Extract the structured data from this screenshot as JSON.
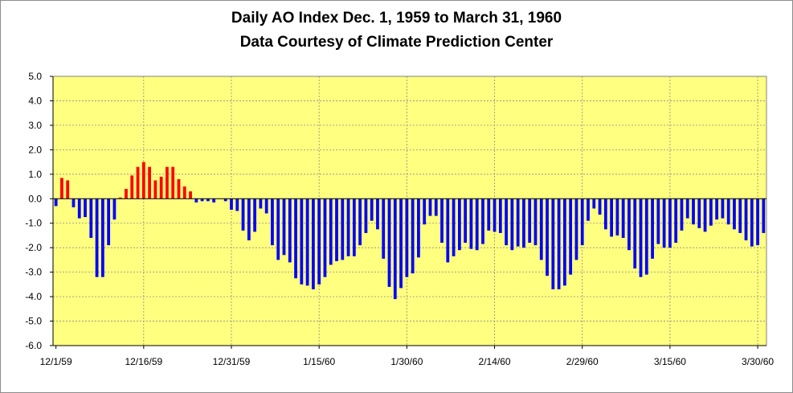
{
  "chart_data": {
    "type": "bar",
    "title": "Daily AO Index Dec. 1, 1959 to March 31, 1960",
    "subtitle": "Data Courtesy of Climate Prediction Center",
    "xlabel": "",
    "ylabel": "",
    "ylim": [
      -6.0,
      5.0
    ],
    "y_ticks": [
      "5.0",
      "4.0",
      "3.0",
      "2.0",
      "1.0",
      "0.0",
      "-1.0",
      "-2.0",
      "-3.0",
      "-4.0",
      "-5.0",
      "-6.0"
    ],
    "x_tick_labels": [
      "12/1/59",
      "12/16/59",
      "12/31/59",
      "1/15/60",
      "1/30/60",
      "2/14/60",
      "2/29/60",
      "3/15/60",
      "3/30/60"
    ],
    "x_tick_day_index": [
      0,
      15,
      30,
      45,
      60,
      75,
      90,
      105,
      120
    ],
    "grid": true,
    "colors": {
      "background": "#ffff80",
      "positive": "#ff0000",
      "negative": "#0000ff",
      "grid": "#8c8c8c"
    },
    "day_count": 122,
    "values": [
      -0.3,
      0.85,
      0.75,
      -0.35,
      -0.8,
      -0.75,
      -1.6,
      -3.2,
      -3.2,
      -1.9,
      -0.85,
      0.05,
      0.4,
      0.95,
      1.3,
      1.5,
      1.3,
      0.75,
      0.9,
      1.3,
      1.3,
      0.8,
      0.5,
      0.3,
      -0.15,
      -0.1,
      -0.1,
      -0.15,
      0.0,
      -0.1,
      -0.45,
      -0.5,
      -1.3,
      -1.7,
      -1.35,
      -0.4,
      -0.6,
      -1.9,
      -2.5,
      -2.3,
      -2.6,
      -3.25,
      -3.5,
      -3.55,
      -3.7,
      -3.5,
      -3.2,
      -2.7,
      -2.55,
      -2.5,
      -2.35,
      -2.35,
      -1.9,
      -1.4,
      -0.9,
      -1.25,
      -2.45,
      -3.6,
      -4.1,
      -3.65,
      -3.2,
      -3.05,
      -2.4,
      -1.05,
      -0.7,
      -0.7,
      -1.8,
      -2.6,
      -2.35,
      -2.1,
      -1.8,
      -2.05,
      -2.1,
      -1.85,
      -1.3,
      -1.35,
      -1.4,
      -1.9,
      -2.1,
      -1.95,
      -2.0,
      -1.8,
      -1.9,
      -2.5,
      -3.15,
      -3.7,
      -3.7,
      -3.55,
      -3.1,
      -2.5,
      -1.9,
      -0.9,
      -0.4,
      -0.65,
      -1.25,
      -1.55,
      -1.5,
      -1.6,
      -2.1,
      -2.85,
      -3.2,
      -3.1,
      -2.45,
      -1.85,
      -2.0,
      -2.0,
      -1.8,
      -1.3,
      -0.8,
      -1.05,
      -1.2,
      -1.35,
      -1.1,
      -0.85,
      -0.8,
      -1.05,
      -1.25,
      -1.4,
      -1.7,
      -1.95,
      -1.9,
      -1.4
    ]
  }
}
